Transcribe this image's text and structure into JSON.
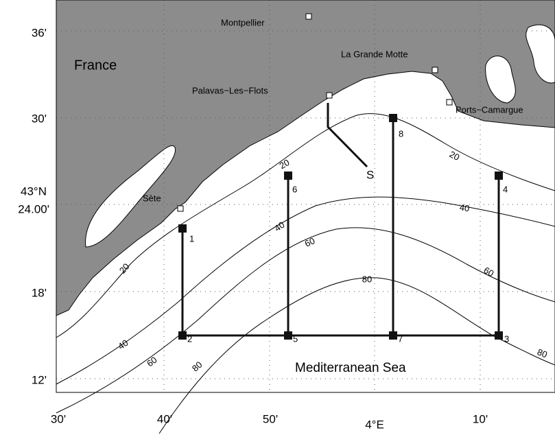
{
  "axes": {
    "x_ticks": [
      "30'",
      "40'",
      "50'",
      "4°E",
      "10'"
    ],
    "y_ticks": [
      "36'",
      "30'",
      [
        "43°N",
        "24.00'"
      ],
      "18'",
      "12'"
    ]
  },
  "regions": {
    "land": "France",
    "sea": "Mediterranean Sea"
  },
  "places": [
    "Montpellier",
    "La Grande Motte",
    "Palavas−Les−Flots",
    "Ports−Camargue",
    "Sète"
  ],
  "stations": [
    "1",
    "2",
    "3",
    "4",
    "5",
    "6",
    "7",
    "8"
  ],
  "transect": "S",
  "contour_labels": [
    "20",
    "20",
    "20",
    "40",
    "40",
    "40",
    "60",
    "60",
    "60",
    "80",
    "80",
    "80"
  ]
}
